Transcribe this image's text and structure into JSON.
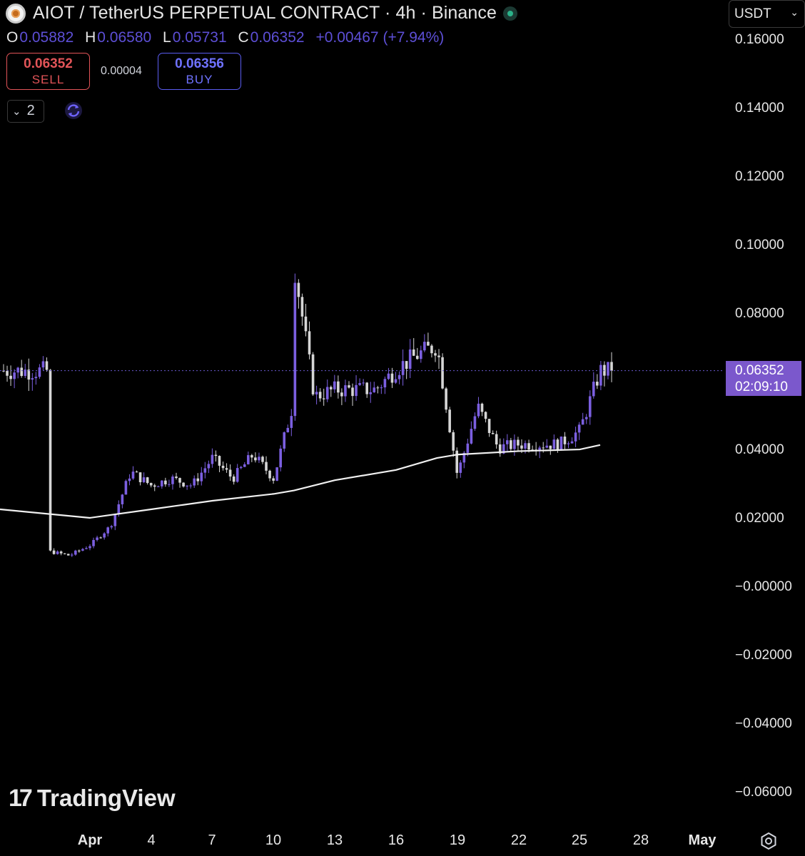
{
  "header": {
    "title": "AIOT / TetherUS PERPETUAL CONTRACT · 4h · Binance",
    "logo_icon": "aiot-coin-icon",
    "status_icon": "market-open-dot-icon"
  },
  "ohlc": {
    "o_label": "O",
    "o_value": "0.05882",
    "h_label": "H",
    "h_value": "0.06580",
    "l_label": "L",
    "l_value": "0.05731",
    "c_label": "C",
    "c_value": "0.06352",
    "change": "+0.00467 (+7.94%)"
  },
  "trade": {
    "sell_price": "0.06352",
    "sell_label": "SELL",
    "spread": "0.00004",
    "buy_price": "0.06356",
    "buy_label": "BUY"
  },
  "indicators": {
    "count": "2"
  },
  "currency": {
    "selected": "USDT"
  },
  "price_axis": {
    "ticks": [
      "0.16000",
      "0.14000",
      "0.12000",
      "0.10000",
      "0.08000",
      "0.04000",
      "0.02000",
      "−0.00000",
      "−0.02000",
      "−0.04000",
      "−0.06000"
    ],
    "last_price": "0.06352",
    "countdown": "02:09:10"
  },
  "date_axis": {
    "ticks": [
      "Apr",
      "4",
      "7",
      "10",
      "13",
      "16",
      "19",
      "22",
      "25",
      "28",
      "May"
    ]
  },
  "branding": {
    "name": "TradingView"
  },
  "colors": {
    "up_candle": "#7b5fe0",
    "down_candle": "#d6d6d6",
    "ma_line": "#f0f0f0",
    "sell": "#e25458",
    "buy": "#5a5cf0",
    "price_tag": "#7b58cc"
  },
  "chart_data": {
    "type": "candlestick",
    "ylim": [
      -0.06,
      0.16
    ],
    "x_unit": "date (2025-04-01 to 2025-05-01), 4h candles",
    "close_path": [
      {
        "date": "Mar 30",
        "close": 0.0107
      },
      {
        "date": "Mar 31",
        "close": 0.0095
      },
      {
        "date": "Apr 1",
        "close": 0.0125
      },
      {
        "date": "Apr 2",
        "close": 0.018
      },
      {
        "date": "Apr 3",
        "close": 0.034
      },
      {
        "date": "Apr 4",
        "close": 0.03
      },
      {
        "date": "Apr 5",
        "close": 0.032
      },
      {
        "date": "Apr 6",
        "close": 0.03
      },
      {
        "date": "Apr 7",
        "close": 0.038
      },
      {
        "date": "Apr 8",
        "close": 0.032
      },
      {
        "date": "Apr 9",
        "close": 0.039
      },
      {
        "date": "Apr 10",
        "close": 0.032
      },
      {
        "date": "Apr 11",
        "close": 0.055
      },
      {
        "date": "Apr 11",
        "close": 0.095
      },
      {
        "date": "Apr 12",
        "close": 0.056
      },
      {
        "date": "Apr 13",
        "close": 0.058
      },
      {
        "date": "Apr 15",
        "close": 0.058
      },
      {
        "date": "Apr 16",
        "close": 0.064
      },
      {
        "date": "Apr 17",
        "close": 0.068
      },
      {
        "date": "Apr 18",
        "close": 0.071
      },
      {
        "date": "Apr 19",
        "close": 0.033
      },
      {
        "date": "Apr 20",
        "close": 0.053
      },
      {
        "date": "Apr 21",
        "close": 0.041
      },
      {
        "date": "Apr 22",
        "close": 0.042
      },
      {
        "date": "Apr 24",
        "close": 0.042
      },
      {
        "date": "Apr 25",
        "close": 0.046
      },
      {
        "date": "Apr 26",
        "close": 0.0635
      }
    ],
    "moving_average": [
      {
        "date": "Mar 30",
        "value": 0.023
      },
      {
        "date": "Apr 1",
        "value": 0.0205
      },
      {
        "date": "Apr 4",
        "value": 0.023
      },
      {
        "date": "Apr 7",
        "value": 0.0255
      },
      {
        "date": "Apr 10",
        "value": 0.0275
      },
      {
        "date": "Apr 11",
        "value": 0.0285
      },
      {
        "date": "Apr 13",
        "value": 0.0315
      },
      {
        "date": "Apr 16",
        "value": 0.0345
      },
      {
        "date": "Apr 18",
        "value": 0.038
      },
      {
        "date": "Apr 19",
        "value": 0.039
      },
      {
        "date": "Apr 22",
        "value": 0.04
      },
      {
        "date": "Apr 25",
        "value": 0.0405
      },
      {
        "date": "Apr 26",
        "value": 0.0418
      }
    ]
  }
}
